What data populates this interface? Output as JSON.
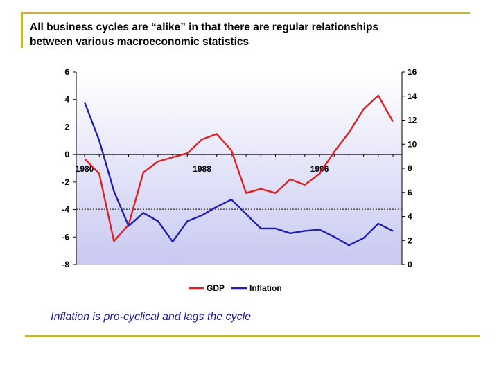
{
  "slide": {
    "title_line1": "All business cycles are “alike” in that there are regular relationships",
    "title_line2": "between various macroeconomic statistics",
    "caption": "Inflation is pro-cyclical and lags the cycle",
    "accent_color": "#C8B43A",
    "caption_color": "#1a1aa8"
  },
  "chart_data": {
    "type": "line",
    "title": "",
    "x": [
      1980,
      1981,
      1982,
      1983,
      1984,
      1985,
      1986,
      1987,
      1988,
      1989,
      1990,
      1991,
      1992,
      1993,
      1994,
      1995,
      1996,
      1997,
      1998,
      1999,
      2000,
      2001
    ],
    "x_tick_labels": [
      "1980",
      "1988",
      "1996"
    ],
    "x_tick_values": [
      1980,
      1988,
      1996
    ],
    "y_left": {
      "ylim": [
        -8,
        6
      ],
      "ticks": [
        "-8",
        "-6",
        "-4",
        "-2",
        "0",
        "2",
        "4",
        "6"
      ]
    },
    "y_right": {
      "ylim": [
        0,
        16
      ],
      "ticks": [
        "0",
        "2",
        "4",
        "6",
        "8",
        "10",
        "12",
        "14",
        "16"
      ]
    },
    "series": [
      {
        "name": "GDP",
        "axis": "left",
        "color": "#e02020",
        "values": [
          -0.3,
          -1.4,
          -6.3,
          -5.1,
          -1.3,
          -0.5,
          -0.2,
          0.1,
          1.1,
          1.5,
          0.3,
          -2.8,
          -2.5,
          -2.8,
          -1.8,
          -2.2,
          -1.4,
          0.2,
          1.6,
          3.3,
          4.3,
          2.4
        ]
      },
      {
        "name": "Inflation",
        "axis": "right",
        "color": "#1f1fb5",
        "values": [
          13.5,
          10.3,
          6.1,
          3.2,
          4.3,
          3.6,
          1.9,
          3.6,
          4.1,
          4.8,
          5.4,
          4.2,
          3.0,
          3.0,
          2.6,
          2.8,
          2.9,
          2.3,
          1.6,
          2.2,
          3.4,
          2.8
        ]
      }
    ],
    "reference_line": {
      "axis": "right",
      "value": 4.6,
      "style": "dashed"
    },
    "legend": {
      "position": "bottom",
      "entries": [
        "GDP",
        "Inflation"
      ]
    },
    "grid": false
  }
}
